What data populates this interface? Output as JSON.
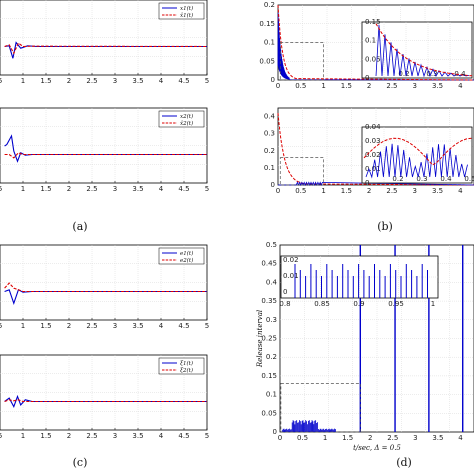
{
  "captions": {
    "a": "(a)",
    "b": "(b)",
    "c": "(c)",
    "d": "(d)"
  },
  "chart_data": [
    {
      "id": "a1",
      "type": "line",
      "x_ticks": [
        "1",
        "1.5",
        "2",
        "2.5",
        "3",
        "3.5",
        "4",
        "4.5",
        "5"
      ],
      "series": [
        {
          "name": "x1(t)",
          "color": "#0000cc",
          "dash": "solid",
          "x": [
            0.6,
            0.7,
            0.78,
            0.85,
            0.95,
            1.1,
            1.3,
            5.0
          ],
          "y": [
            0.0,
            0.02,
            -0.35,
            0.12,
            -0.05,
            0.02,
            0.0,
            0.0
          ]
        },
        {
          "name": "x̂1(t)",
          "color": "#dd0000",
          "dash": "dashed",
          "x": [
            0.6,
            0.7,
            0.8,
            0.9,
            1.0,
            1.2,
            5.0
          ],
          "y": [
            0.0,
            0.05,
            -0.2,
            0.1,
            0.0,
            0.01,
            0.0
          ]
        }
      ],
      "legend": [
        "x1(t)",
        "x̂1(t)"
      ]
    },
    {
      "id": "a2",
      "type": "line",
      "x_ticks": [
        "1",
        "1.5",
        "2",
        "2.5",
        "3",
        "3.5",
        "4",
        "4.5",
        "5"
      ],
      "series": [
        {
          "name": "x2(t)",
          "color": "#0000cc",
          "dash": "solid",
          "x": [
            0.6,
            0.65,
            0.75,
            0.8,
            0.88,
            0.95,
            1.05,
            1.2,
            5.0
          ],
          "y": [
            0.25,
            0.3,
            0.55,
            0.1,
            -0.2,
            0.05,
            -0.02,
            0.0,
            0.0
          ]
        },
        {
          "name": "x̂2(t)",
          "color": "#dd0000",
          "dash": "dashed",
          "x": [
            0.6,
            0.7,
            0.8,
            0.9,
            1.0,
            1.2,
            5.0
          ],
          "y": [
            0.0,
            0.0,
            -0.1,
            0.05,
            0.0,
            0.0,
            0.0
          ]
        }
      ],
      "legend": [
        "x2(t)",
        "x̂2(t)"
      ]
    },
    {
      "id": "b1",
      "type": "line",
      "y_ticks": [
        "0",
        "0.05",
        "0.1",
        "0.15",
        "0.2"
      ],
      "ylim": [
        0,
        0.2
      ],
      "x_ticks": [
        "0",
        "0.5",
        "1",
        "1.5",
        "2",
        "2.5",
        "3",
        "3.5",
        "4"
      ],
      "xlim": [
        0,
        4.3
      ],
      "inset": {
        "y_ticks": [
          "0",
          "0.05",
          "0.1",
          "0.15"
        ],
        "ylim": [
          0,
          0.15
        ],
        "xlim": [
          0,
          0.5
        ],
        "x_ticks": [
          "0.2",
          "0.3",
          "0.4"
        ]
      }
    },
    {
      "id": "b2",
      "type": "line",
      "y_ticks": [
        "0",
        "0.1",
        "0.2",
        "0.3",
        "0.4"
      ],
      "ylim": [
        0,
        0.45
      ],
      "x_ticks": [
        "0",
        "0.5",
        "1",
        "1.5",
        "2",
        "2.5",
        "3",
        "3.5",
        "4"
      ],
      "xlim": [
        0,
        4.3
      ],
      "inset": {
        "y_ticks": [
          "0",
          "0.01",
          "0.02",
          "0.03",
          "0.04"
        ],
        "ylim": [
          0,
          0.04
        ],
        "xlim": [
          0,
          0.5
        ],
        "x_ticks": [
          "0.2",
          "0.3",
          "0.4",
          "0.5"
        ]
      }
    },
    {
      "id": "c1",
      "type": "line",
      "x_ticks": [
        "1",
        "1.5",
        "2",
        "2.5",
        "3",
        "3.5",
        "4",
        "4.5",
        "5"
      ],
      "series": [
        {
          "name": "e1(t)",
          "color": "#0000cc",
          "dash": "solid",
          "x": [
            0.6,
            0.7,
            0.8,
            0.9,
            1.0,
            1.2,
            5.0
          ],
          "y": [
            0.0,
            0.05,
            -0.35,
            0.05,
            -0.02,
            0.0,
            0.0
          ]
        },
        {
          "name": "e2(t)",
          "color": "#dd0000",
          "dash": "dashed",
          "x": [
            0.6,
            0.7,
            0.8,
            0.9,
            1.0,
            1.2,
            5.0
          ],
          "y": [
            0.1,
            0.25,
            0.1,
            0.05,
            0.0,
            0.0,
            0.0
          ]
        }
      ],
      "legend": [
        "e1(t)",
        "e2(t)"
      ]
    },
    {
      "id": "c2",
      "type": "line",
      "x_ticks": [
        "1",
        "1.5",
        "2",
        "2.5",
        "3",
        "3.5",
        "4",
        "4.5",
        "5"
      ],
      "series": [
        {
          "name": "ξ1(t)",
          "color": "#0000cc",
          "dash": "solid",
          "x": [
            0.6,
            0.7,
            0.8,
            0.88,
            0.95,
            1.05,
            1.2,
            5.0
          ],
          "y": [
            0.0,
            0.1,
            -0.15,
            0.15,
            -0.1,
            0.05,
            0.0,
            0.0
          ]
        },
        {
          "name": "ξ2(t)",
          "color": "#dd0000",
          "dash": "dashed",
          "x": [
            0.6,
            0.7,
            0.8,
            0.9,
            1.0,
            1.2,
            5.0
          ],
          "y": [
            0.0,
            0.05,
            0.02,
            0.05,
            0.0,
            0.0,
            0.0
          ]
        }
      ],
      "legend": [
        "ξ1(t)",
        "ξ2(t)"
      ]
    },
    {
      "id": "d",
      "type": "bar",
      "ylabel": "Release interval",
      "xlabel": "t/sec, Δ = 0.5",
      "y_ticks": [
        "0",
        "0.05",
        "0.1",
        "0.15",
        "0.2",
        "0.25",
        "0.3",
        "0.35",
        "0.4",
        "0.45",
        "0.5"
      ],
      "ylim": [
        0,
        0.5
      ],
      "x_ticks": [
        "0",
        "0.5",
        "1",
        "1.5",
        "2",
        "2.5",
        "3",
        "3.5",
        "4"
      ],
      "xlim": [
        0,
        4.3
      ],
      "spikes_x": [
        1.78,
        2.55,
        3.3,
        4.05
      ],
      "inset": {
        "y_ticks": [
          "0",
          "0.01",
          "0.02"
        ],
        "x_ticks": [
          "0.8",
          "0.85",
          "0.9",
          "0.95",
          "1"
        ],
        "xlim": [
          0.8,
          1.0
        ],
        "ylim": [
          0,
          0.02
        ]
      }
    }
  ]
}
